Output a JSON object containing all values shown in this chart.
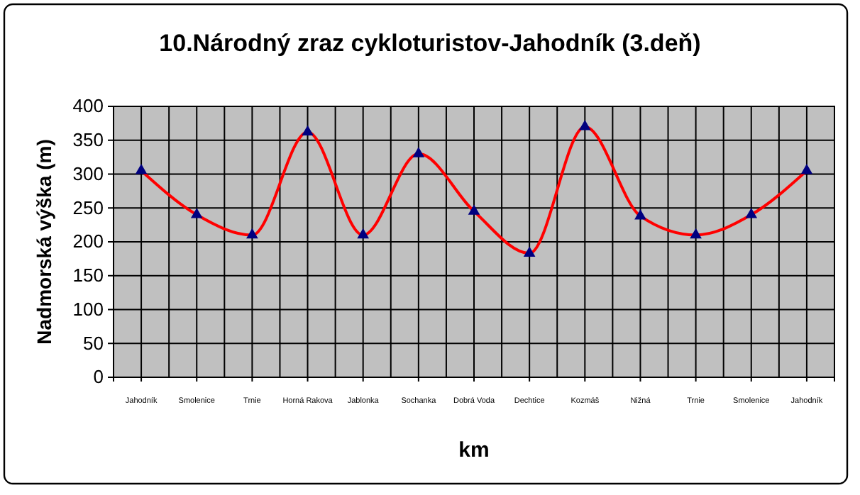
{
  "chart_data": {
    "type": "line",
    "title": "10.Národný zraz cykloturistov-Jahodník (3.deň)",
    "xlabel": "km",
    "ylabel": "Nadmorská výška (m)",
    "categories": [
      "Jahodník",
      "Smolenice",
      "Trnie",
      "Horná Rakova",
      "Jablonka",
      "Sochanka",
      "Dobrá Voda",
      "Dechtice",
      "Kozmáš",
      "Nižná",
      "Trnie",
      "Smolenice",
      "Jahodník"
    ],
    "series": [
      {
        "color": "#ff0000",
        "values": [
          305,
          240,
          210,
          362,
          210,
          330,
          245,
          183,
          370,
          238,
          210,
          240,
          305
        ]
      }
    ],
    "ylim": [
      0,
      400
    ],
    "yticks": [
      0,
      50,
      100,
      150,
      200,
      250,
      300,
      350,
      400
    ],
    "grid": true,
    "marker": "triangle",
    "line_style": "solid"
  }
}
